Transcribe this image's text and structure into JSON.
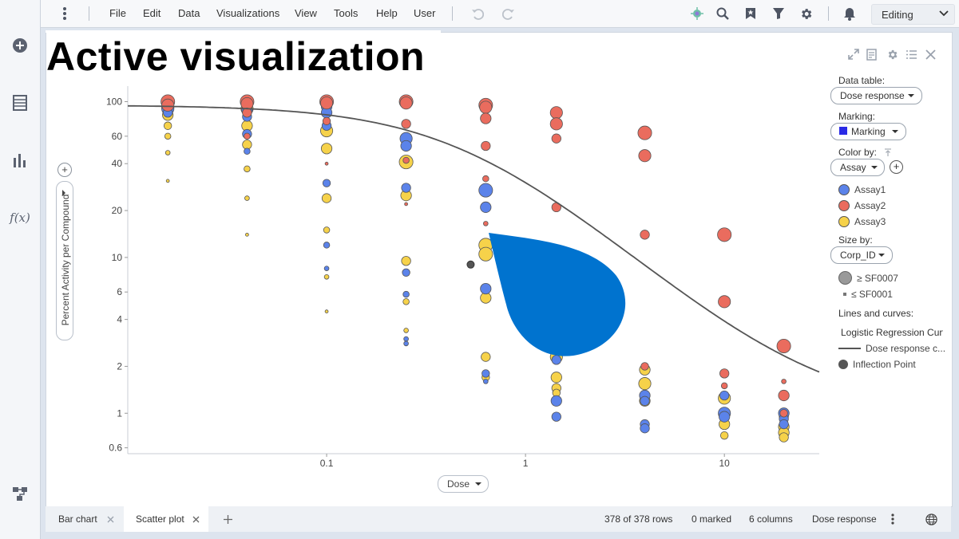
{
  "menu": {
    "items": [
      "File",
      "Edit",
      "Data",
      "Visualizations",
      "View",
      "Tools",
      "Help",
      "User"
    ],
    "mode": "Editing"
  },
  "left_rail": {
    "icons": [
      "add-icon",
      "data-table-icon",
      "visualization-icon",
      "function-icon",
      "data-flow-icon"
    ],
    "function_label": "f(x)"
  },
  "viz": {
    "title": "Active visualization"
  },
  "chart_data": {
    "type": "scatter",
    "xlabel": "Dose",
    "ylabel": "Percent Activity per Compound",
    "x_scale": "log",
    "y_scale": "log",
    "xlim": [
      0.01,
      30
    ],
    "ylim": [
      0.55,
      120
    ],
    "x_ticks": [
      0.1,
      1,
      10
    ],
    "x_tick_labels": [
      "0.1",
      "1",
      "10"
    ],
    "y_ticks": [
      0.6,
      1,
      2,
      4,
      6,
      10,
      20,
      40,
      60,
      100
    ],
    "y_tick_labels": [
      "0.6",
      "1",
      "2",
      "4",
      "6",
      "10",
      "20",
      "40",
      "60",
      "100"
    ],
    "series": [
      {
        "name": "Assay1",
        "color": "#5b83ea",
        "points": [
          [
            0.0159,
            90,
            7
          ],
          [
            0.0159,
            85,
            5
          ],
          [
            0.0398,
            95,
            6
          ],
          [
            0.0398,
            88,
            6
          ],
          [
            0.0398,
            80,
            5
          ],
          [
            0.0398,
            62,
            5
          ],
          [
            0.0398,
            48,
            3
          ],
          [
            0.1,
            93,
            6
          ],
          [
            0.1,
            85,
            6
          ],
          [
            0.1,
            70,
            5
          ],
          [
            0.1,
            30,
            4
          ],
          [
            0.1,
            12,
            3
          ],
          [
            0.1,
            8.5,
            2
          ],
          [
            0.251,
            58,
            7
          ],
          [
            0.251,
            52,
            6
          ],
          [
            0.251,
            28,
            5
          ],
          [
            0.251,
            8,
            4
          ],
          [
            0.251,
            5.8,
            3
          ],
          [
            0.251,
            3,
            2
          ],
          [
            0.251,
            2.8,
            2
          ],
          [
            0.631,
            27,
            8
          ],
          [
            0.631,
            21,
            6
          ],
          [
            0.631,
            6.3,
            6
          ],
          [
            0.631,
            1.8,
            4
          ],
          [
            0.631,
            1.6,
            2
          ],
          [
            1.43,
            2.2,
            5
          ],
          [
            1.43,
            1.2,
            6
          ],
          [
            1.43,
            0.95,
            5
          ],
          [
            3.98,
            1.3,
            6
          ],
          [
            3.98,
            1.2,
            5
          ],
          [
            3.98,
            0.85,
            5
          ],
          [
            3.98,
            0.8,
            5
          ],
          [
            10,
            1.3,
            5
          ],
          [
            10,
            1.0,
            7
          ],
          [
            10,
            0.95,
            6
          ],
          [
            19.9,
            1.0,
            6
          ],
          [
            19.9,
            0.92,
            5
          ],
          [
            19.9,
            0.85,
            5
          ]
        ]
      },
      {
        "name": "Assay2",
        "color": "#ea6c5e",
        "points": [
          [
            0.0159,
            100,
            8
          ],
          [
            0.0159,
            95,
            7
          ],
          [
            0.0398,
            100,
            8
          ],
          [
            0.0398,
            97,
            7
          ],
          [
            0.0398,
            85,
            5
          ],
          [
            0.0398,
            60,
            3
          ],
          [
            0.1,
            100,
            8
          ],
          [
            0.1,
            98,
            7
          ],
          [
            0.1,
            75,
            4
          ],
          [
            0.1,
            40,
            1
          ],
          [
            0.251,
            100,
            8
          ],
          [
            0.251,
            98,
            7
          ],
          [
            0.251,
            72,
            5
          ],
          [
            0.251,
            42,
            3
          ],
          [
            0.251,
            22,
            1
          ],
          [
            0.631,
            95,
            8
          ],
          [
            0.631,
            92,
            7
          ],
          [
            0.631,
            78,
            6
          ],
          [
            0.631,
            52,
            5
          ],
          [
            0.631,
            32,
            3
          ],
          [
            0.631,
            16.5,
            2
          ],
          [
            1.43,
            85,
            7
          ],
          [
            1.43,
            72,
            7
          ],
          [
            1.43,
            58,
            5
          ],
          [
            1.43,
            21,
            5
          ],
          [
            3.98,
            63,
            8
          ],
          [
            3.98,
            45,
            7
          ],
          [
            3.98,
            14,
            5
          ],
          [
            3.98,
            2.0,
            4
          ],
          [
            10,
            14,
            8
          ],
          [
            10,
            5.2,
            7
          ],
          [
            10,
            1.8,
            5
          ],
          [
            10,
            1.5,
            3
          ],
          [
            19.9,
            2.7,
            8
          ],
          [
            19.9,
            1.3,
            6
          ],
          [
            19.9,
            1.6,
            2
          ],
          [
            19.9,
            1.0,
            4
          ]
        ]
      },
      {
        "name": "Assay3",
        "color": "#f6d24a",
        "points": [
          [
            0.0159,
            92,
            7
          ],
          [
            0.0159,
            82,
            6
          ],
          [
            0.0159,
            70,
            4
          ],
          [
            0.0159,
            60,
            3
          ],
          [
            0.0159,
            47,
            2
          ],
          [
            0.0159,
            31,
            1
          ],
          [
            0.0398,
            90,
            7
          ],
          [
            0.0398,
            70,
            6
          ],
          [
            0.0398,
            53,
            5
          ],
          [
            0.0398,
            37,
            3
          ],
          [
            0.0398,
            24,
            2
          ],
          [
            0.0398,
            14,
            1
          ],
          [
            0.1,
            65,
            7
          ],
          [
            0.1,
            50,
            6
          ],
          [
            0.1,
            24,
            5
          ],
          [
            0.1,
            15,
            3
          ],
          [
            0.1,
            7.5,
            2
          ],
          [
            0.1,
            4.5,
            1
          ],
          [
            0.251,
            41,
            8
          ],
          [
            0.251,
            25,
            6
          ],
          [
            0.251,
            9.5,
            5
          ],
          [
            0.251,
            5.2,
            3
          ],
          [
            0.251,
            3.4,
            2
          ],
          [
            0.631,
            12,
            8
          ],
          [
            0.631,
            10.5,
            8
          ],
          [
            0.631,
            5.5,
            6
          ],
          [
            0.631,
            2.3,
            5
          ],
          [
            0.631,
            1.7,
            4
          ],
          [
            1.43,
            2.3,
            7
          ],
          [
            1.43,
            1.7,
            6
          ],
          [
            1.43,
            1.45,
            5
          ],
          [
            1.43,
            1.35,
            4
          ],
          [
            3.98,
            1.9,
            6
          ],
          [
            3.98,
            1.55,
            7
          ],
          [
            3.98,
            1.2,
            6
          ],
          [
            10,
            1.25,
            7
          ],
          [
            10,
            0.85,
            6
          ],
          [
            10,
            0.72,
            4
          ],
          [
            19.9,
            0.95,
            5
          ],
          [
            19.9,
            0.82,
            6
          ],
          [
            19.9,
            0.75,
            6
          ],
          [
            19.9,
            0.7,
            5
          ]
        ]
      }
    ],
    "curve": {
      "name": "Dose response c...",
      "color": "#555555",
      "model": "logistic",
      "top": 95,
      "bottom": 1.0,
      "ec50": 0.5,
      "hill": 1.15
    },
    "inflection_point": {
      "x": 0.53,
      "y": 9.0
    }
  },
  "legend": {
    "data_table_label": "Data table:",
    "data_table_value": "Dose response",
    "marking_label": "Marking:",
    "marking_value": "Marking",
    "marking_color": "#2a2ae6",
    "color_by_label": "Color by:",
    "color_by_value": "Assay",
    "color_items": [
      {
        "label": "Assay1",
        "color": "#5b83ea"
      },
      {
        "label": "Assay2",
        "color": "#ea6c5e"
      },
      {
        "label": "Assay3",
        "color": "#f6d24a"
      }
    ],
    "size_by_label": "Size by:",
    "size_by_value": "Corp_ID",
    "size_max": "≥ SF0007",
    "size_min": "≤ SF0001",
    "lines_label": "Lines and curves:",
    "lines_group": "Logistic Regression Curv",
    "curve_item": "Dose response c...",
    "inflection_item": "Inflection Point"
  },
  "tabs": [
    {
      "label": "Bar chart",
      "active": false
    },
    {
      "label": "Scatter plot",
      "active": true
    }
  ],
  "status": {
    "rows": "378 of 378 rows",
    "marked": "0 marked",
    "columns": "6 columns",
    "table": "Dose response"
  },
  "droplet_color": "#0073cf"
}
